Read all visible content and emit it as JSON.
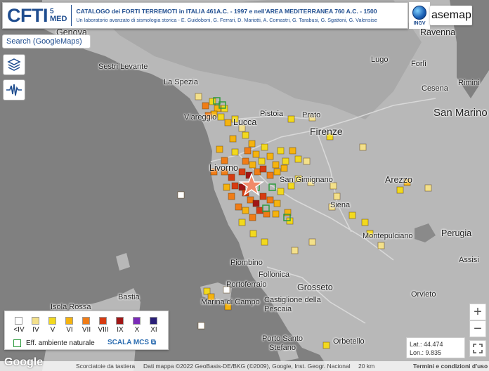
{
  "header": {
    "logo": "CFTI",
    "logo_sup": "5",
    "logo_sub": "MED",
    "title": "CATALOGO dei FORTI TERREMOTI in ITALIA 461A.C. - 1997 e nell'AREA MEDITERRANEA 760 A.C. - 1500",
    "subtitle": "Un laboratorio avanzato di sismologia storica - E. Guidoboni, G. Ferrari, D. Mariotti, A. Comastri, G. Tarabusi, G. Sgattoni, G. Valensise",
    "ingv": "INGV"
  },
  "basemap_label": "asemap",
  "search_label": "Search (GoogleMaps)",
  "tools": {
    "layers_icon": "layers-icon",
    "seismo_icon": "seismograph-icon"
  },
  "places": [
    {
      "name": "Genova",
      "cls": "m"
    },
    {
      "name": "Ravenna",
      "cls": "m"
    },
    {
      "name": "Sestri Levante",
      "cls": "s"
    },
    {
      "name": "Lugo",
      "cls": "s"
    },
    {
      "name": "Forlì",
      "cls": "s"
    },
    {
      "name": "Cesena",
      "cls": "s"
    },
    {
      "name": "Rimini",
      "cls": "s"
    },
    {
      "name": "La Spezia",
      "cls": "s"
    },
    {
      "name": "Viareggio",
      "cls": "s"
    },
    {
      "name": "Lucca",
      "cls": "m"
    },
    {
      "name": "Pistoia",
      "cls": "s"
    },
    {
      "name": "Prato",
      "cls": "s"
    },
    {
      "name": "Firenze",
      "cls": "l"
    },
    {
      "name": "San Marino",
      "cls": "xl"
    },
    {
      "name": "Livorno",
      "cls": "m"
    },
    {
      "name": "San Gimignano",
      "cls": "s"
    },
    {
      "name": "Arezzo",
      "cls": "m"
    },
    {
      "name": "Siena",
      "cls": "s"
    },
    {
      "name": "Montepulciano",
      "cls": "s"
    },
    {
      "name": "Perugia",
      "cls": "m"
    },
    {
      "name": "Assisi",
      "cls": "s"
    },
    {
      "name": "Piombino",
      "cls": "s"
    },
    {
      "name": "Follonica",
      "cls": "s"
    },
    {
      "name": "Portoferraio",
      "cls": "s"
    },
    {
      "name": "Grosseto",
      "cls": "m"
    },
    {
      "name": "Orvieto",
      "cls": "s"
    },
    {
      "name": "Isola Rossa",
      "cls": "s"
    },
    {
      "name": "Bastia",
      "cls": "s"
    },
    {
      "name": "Marina di Campo",
      "cls": "s"
    },
    {
      "name": "Castiglione della Pescaia",
      "cls": "s"
    },
    {
      "name": "Porto Santo Stefano",
      "cls": "s"
    },
    {
      "name": "Orbetello",
      "cls": "s"
    }
  ],
  "legend": {
    "classes": [
      {
        "label": "<IV",
        "color": "#ffffff"
      },
      {
        "label": "IV",
        "color": "#f3e08a"
      },
      {
        "label": "V",
        "color": "#f2d91e"
      },
      {
        "label": "VI",
        "color": "#f5b30f"
      },
      {
        "label": "VII",
        "color": "#f07c16"
      },
      {
        "label": "VIII",
        "color": "#d63b12"
      },
      {
        "label": "IX",
        "color": "#a11616"
      },
      {
        "label": "X",
        "color": "#7b2bb8"
      },
      {
        "label": "XI",
        "color": "#2a1f78"
      }
    ],
    "env_label": "Eff. ambiente naturale",
    "scala": "SCALA MCS ⧉"
  },
  "coords": {
    "lat": "Lat.:  44.474",
    "lon": "Lon.:  9.835"
  },
  "zoom": {
    "in": "+",
    "out": "−"
  },
  "footer": {
    "shortcuts": "Scorciatoie da tastiera",
    "mapdata": "Dati mappa ©2022 GeoBasis-DE/BKG (©2009), Google, Inst. Geogr. Nacional",
    "scale": "20 km",
    "terms": "Termini e condizioni d'uso",
    "google": "Google"
  }
}
